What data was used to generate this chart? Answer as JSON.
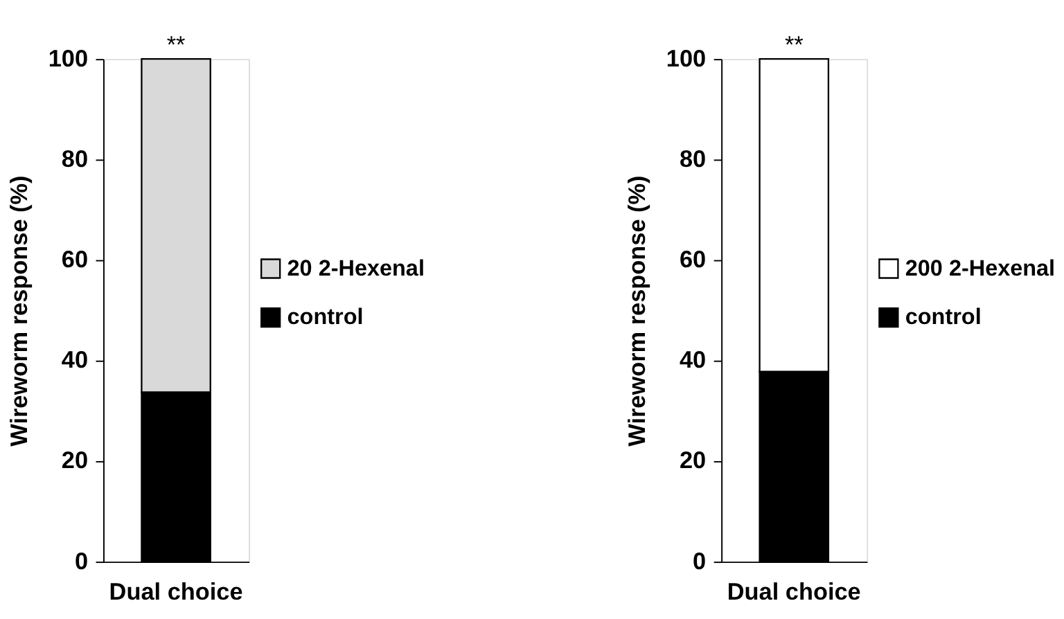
{
  "chart_data": [
    {
      "type": "bar",
      "stacked": true,
      "categories": [
        "Dual choice"
      ],
      "ylabel": "Wireworm response (%)",
      "ylim": [
        0,
        100
      ],
      "yticks": [
        0,
        20,
        40,
        60,
        80,
        100
      ],
      "grid": false,
      "legend": "right",
      "series": [
        {
          "name": "control",
          "color": "#000000",
          "values": [
            33.7
          ]
        },
        {
          "name": "20 2-Hexenal",
          "color": "#d9d9d9",
          "values": [
            66.3
          ]
        }
      ],
      "annotations": [
        {
          "text": "**",
          "x": "Dual choice",
          "y": 100
        }
      ]
    },
    {
      "type": "bar",
      "stacked": true,
      "categories": [
        "Dual choice"
      ],
      "ylabel": "Wireworm response (%)",
      "ylim": [
        0,
        100
      ],
      "yticks": [
        0,
        20,
        40,
        60,
        80,
        100
      ],
      "grid": false,
      "legend": "right",
      "series": [
        {
          "name": "control",
          "color": "#000000",
          "values": [
            37.8
          ]
        },
        {
          "name": "200 2-Hexenal",
          "color": "#ffffff",
          "values": [
            62.2
          ]
        }
      ],
      "annotations": [
        {
          "text": "**",
          "x": "Dual choice",
          "y": 100
        }
      ]
    }
  ]
}
